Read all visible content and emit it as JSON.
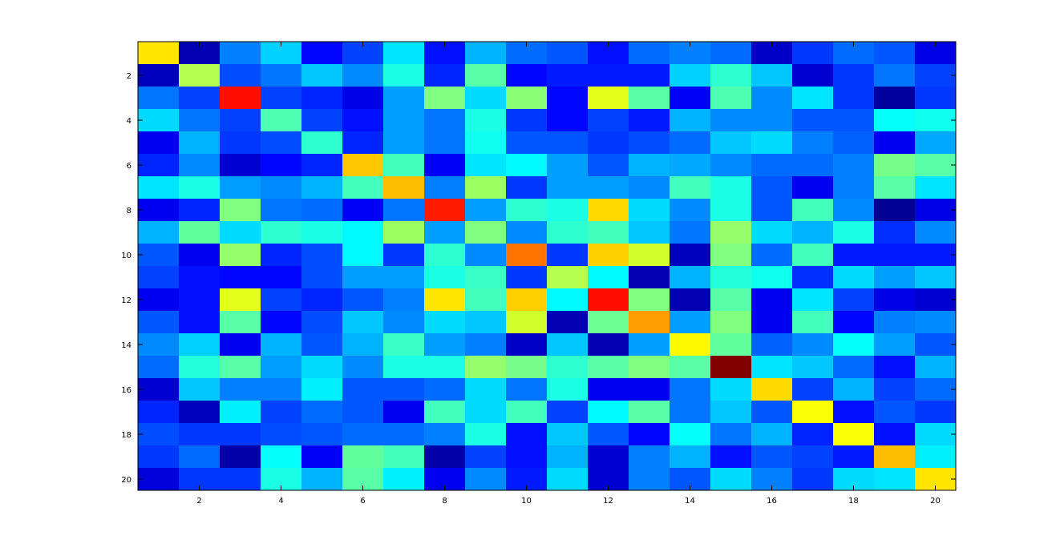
{
  "chart_data": {
    "type": "heatmap",
    "colormap": "jet",
    "clim": [
      0,
      1
    ],
    "xlim": [
      0.5,
      20.5
    ],
    "ylim": [
      0.5,
      20.5
    ],
    "xticks": [
      2,
      4,
      6,
      8,
      10,
      12,
      14,
      16,
      18,
      20
    ],
    "yticks": [
      2,
      4,
      6,
      8,
      10,
      12,
      14,
      16,
      18,
      20
    ],
    "z": [
      [
        0.65,
        0.05,
        0.25,
        0.33,
        0.13,
        0.19,
        0.35,
        0.14,
        0.3,
        0.23,
        0.21,
        0.14,
        0.23,
        0.25,
        0.23,
        0.07,
        0.18,
        0.23,
        0.21,
        0.1
      ],
      [
        0.06,
        0.55,
        0.2,
        0.24,
        0.32,
        0.26,
        0.4,
        0.16,
        0.46,
        0.13,
        0.15,
        0.15,
        0.15,
        0.33,
        0.42,
        0.32,
        0.08,
        0.18,
        0.24,
        0.19
      ],
      [
        0.24,
        0.19,
        0.86,
        0.19,
        0.16,
        0.1,
        0.28,
        0.5,
        0.34,
        0.51,
        0.13,
        0.6,
        0.46,
        0.12,
        0.45,
        0.26,
        0.35,
        0.18,
        0.03,
        0.18
      ],
      [
        0.34,
        0.24,
        0.19,
        0.45,
        0.19,
        0.14,
        0.28,
        0.24,
        0.4,
        0.18,
        0.13,
        0.19,
        0.15,
        0.3,
        0.26,
        0.26,
        0.21,
        0.21,
        0.38,
        0.39
      ],
      [
        0.11,
        0.3,
        0.18,
        0.2,
        0.42,
        0.16,
        0.28,
        0.24,
        0.39,
        0.21,
        0.21,
        0.18,
        0.2,
        0.23,
        0.32,
        0.34,
        0.25,
        0.22,
        0.11,
        0.29
      ],
      [
        0.16,
        0.26,
        0.08,
        0.13,
        0.16,
        0.68,
        0.44,
        0.12,
        0.35,
        0.37,
        0.28,
        0.21,
        0.3,
        0.29,
        0.26,
        0.23,
        0.23,
        0.25,
        0.49,
        0.46
      ],
      [
        0.35,
        0.4,
        0.28,
        0.26,
        0.3,
        0.44,
        0.69,
        0.25,
        0.53,
        0.18,
        0.28,
        0.28,
        0.26,
        0.44,
        0.4,
        0.21,
        0.11,
        0.25,
        0.46,
        0.35
      ],
      [
        0.11,
        0.16,
        0.5,
        0.24,
        0.23,
        0.12,
        0.24,
        0.85,
        0.28,
        0.42,
        0.4,
        0.66,
        0.34,
        0.26,
        0.4,
        0.21,
        0.44,
        0.26,
        0.02,
        0.1
      ],
      [
        0.3,
        0.47,
        0.34,
        0.42,
        0.4,
        0.37,
        0.53,
        0.28,
        0.5,
        0.26,
        0.42,
        0.44,
        0.32,
        0.24,
        0.52,
        0.34,
        0.3,
        0.4,
        0.17,
        0.26
      ],
      [
        0.21,
        0.11,
        0.52,
        0.16,
        0.2,
        0.37,
        0.18,
        0.42,
        0.26,
        0.76,
        0.18,
        0.67,
        0.58,
        0.06,
        0.5,
        0.23,
        0.44,
        0.15,
        0.15,
        0.15
      ],
      [
        0.19,
        0.14,
        0.13,
        0.13,
        0.2,
        0.28,
        0.28,
        0.4,
        0.43,
        0.18,
        0.55,
        0.37,
        0.05,
        0.3,
        0.41,
        0.39,
        0.17,
        0.34,
        0.28,
        0.32
      ],
      [
        0.11,
        0.14,
        0.6,
        0.19,
        0.16,
        0.21,
        0.25,
        0.65,
        0.44,
        0.67,
        0.37,
        0.86,
        0.5,
        0.05,
        0.46,
        0.11,
        0.35,
        0.19,
        0.1,
        0.08
      ],
      [
        0.21,
        0.14,
        0.46,
        0.13,
        0.2,
        0.32,
        0.26,
        0.34,
        0.32,
        0.58,
        0.05,
        0.48,
        0.72,
        0.28,
        0.5,
        0.11,
        0.44,
        0.13,
        0.25,
        0.26
      ],
      [
        0.26,
        0.33,
        0.11,
        0.3,
        0.21,
        0.3,
        0.43,
        0.28,
        0.25,
        0.07,
        0.32,
        0.05,
        0.28,
        0.63,
        0.47,
        0.22,
        0.26,
        0.38,
        0.28,
        0.21
      ],
      [
        0.23,
        0.41,
        0.46,
        0.28,
        0.34,
        0.26,
        0.4,
        0.4,
        0.52,
        0.49,
        0.42,
        0.46,
        0.5,
        0.46,
        1.0,
        0.35,
        0.32,
        0.23,
        0.14,
        0.3
      ],
      [
        0.08,
        0.32,
        0.25,
        0.25,
        0.36,
        0.21,
        0.21,
        0.23,
        0.34,
        0.24,
        0.4,
        0.11,
        0.11,
        0.24,
        0.34,
        0.66,
        0.19,
        0.3,
        0.19,
        0.23
      ],
      [
        0.16,
        0.06,
        0.36,
        0.19,
        0.23,
        0.21,
        0.11,
        0.44,
        0.34,
        0.44,
        0.19,
        0.37,
        0.46,
        0.24,
        0.32,
        0.21,
        0.62,
        0.14,
        0.21,
        0.18
      ],
      [
        0.2,
        0.18,
        0.18,
        0.2,
        0.21,
        0.23,
        0.23,
        0.25,
        0.4,
        0.14,
        0.32,
        0.21,
        0.13,
        0.38,
        0.24,
        0.3,
        0.16,
        0.62,
        0.14,
        0.34
      ],
      [
        0.18,
        0.23,
        0.04,
        0.38,
        0.12,
        0.47,
        0.44,
        0.04,
        0.19,
        0.14,
        0.3,
        0.08,
        0.25,
        0.3,
        0.14,
        0.21,
        0.19,
        0.15,
        0.69,
        0.36
      ],
      [
        0.09,
        0.18,
        0.18,
        0.4,
        0.3,
        0.46,
        0.36,
        0.11,
        0.26,
        0.15,
        0.34,
        0.08,
        0.25,
        0.21,
        0.34,
        0.25,
        0.18,
        0.34,
        0.35,
        0.65
      ]
    ]
  }
}
